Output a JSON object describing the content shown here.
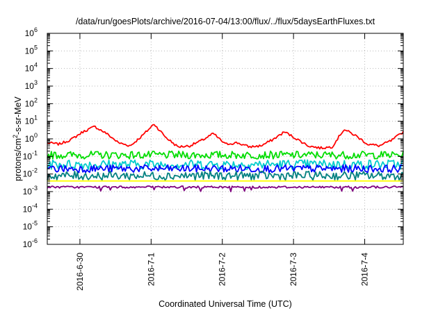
{
  "chart_data": {
    "type": "line",
    "title": "/data/run/goesPlots/archive/2016-07-04/13:00/flux/../flux/5daysEarthFluxes.txt",
    "xlabel": "Coordinated Universal Time (UTC)",
    "ylabel_parts": [
      "protons/cm",
      "2",
      "-s-sr-MeV"
    ],
    "y_scale": "log",
    "ylim": [
      1e-06,
      1000000.0
    ],
    "y_ticks": [
      {
        "base": "10",
        "exp": "-6"
      },
      {
        "base": "10",
        "exp": "-5"
      },
      {
        "base": "10",
        "exp": "-4"
      },
      {
        "base": "10",
        "exp": "-3"
      },
      {
        "base": "10",
        "exp": "-2"
      },
      {
        "base": "10",
        "exp": "-1"
      },
      {
        "base": "10",
        "exp": "0"
      },
      {
        "base": "10",
        "exp": "1"
      },
      {
        "base": "10",
        "exp": "2"
      },
      {
        "base": "10",
        "exp": "3"
      },
      {
        "base": "10",
        "exp": "4"
      },
      {
        "base": "10",
        "exp": "5"
      },
      {
        "base": "10",
        "exp": "6"
      }
    ],
    "xlim": [
      "2016-06-29 13:00",
      "2016-07-04 13:00"
    ],
    "x_ticks": [
      "2016-6-30",
      "2016-7-1",
      "2016-7-2",
      "2016-7-3",
      "2016-7-4"
    ],
    "grid": true,
    "series": [
      {
        "color": "#ff0000",
        "x": [
          "2016-06-29 13:00",
          "2016-06-29 17:00",
          "2016-06-29 21:00",
          "2016-06-30 01:00",
          "2016-06-30 05:00",
          "2016-06-30 09:00",
          "2016-06-30 13:00",
          "2016-06-30 17:00",
          "2016-06-30 21:00",
          "2016-07-01 01:00",
          "2016-07-01 05:00",
          "2016-07-01 09:00",
          "2016-07-01 13:00",
          "2016-07-01 17:00",
          "2016-07-01 21:00",
          "2016-07-02 01:00",
          "2016-07-02 05:00",
          "2016-07-02 09:00",
          "2016-07-02 13:00",
          "2016-07-02 17:00",
          "2016-07-02 21:00",
          "2016-07-03 01:00",
          "2016-07-03 05:00",
          "2016-07-03 09:00",
          "2016-07-03 13:00",
          "2016-07-03 17:00",
          "2016-07-03 21:00",
          "2016-07-04 01:00",
          "2016-07-04 05:00",
          "2016-07-04 09:00",
          "2016-07-04 13:00"
        ],
        "y": [
          0.6,
          0.5,
          0.9,
          2.5,
          5.0,
          2.0,
          0.6,
          0.4,
          1.5,
          7.0,
          1.2,
          0.35,
          0.4,
          0.8,
          2.0,
          0.5,
          0.6,
          0.35,
          0.4,
          0.9,
          2.5,
          1.0,
          0.4,
          0.3,
          0.35,
          3.5,
          1.5,
          0.5,
          0.4,
          0.8,
          2.5
        ]
      },
      {
        "color": "#00dd00",
        "x": [
          "2016-06-29 13:00",
          "2016-07-04 13:00"
        ],
        "y": [
          0.12,
          0.12
        ]
      },
      {
        "color": "#00cccc",
        "x": [
          "2016-06-29 13:00",
          "2016-07-04 13:00"
        ],
        "y": [
          0.035,
          0.035
        ]
      },
      {
        "color": "#0000ff",
        "x": [
          "2016-06-29 13:00",
          "2016-07-04 13:00"
        ],
        "y": [
          0.02,
          0.02
        ]
      },
      {
        "color": "#008080",
        "x": [
          "2016-06-29 13:00",
          "2016-07-04 13:00"
        ],
        "y": [
          0.008,
          0.008
        ]
      },
      {
        "color": "#ffff00",
        "x": [
          "2016-06-29 13:00",
          "2016-07-04 13:00"
        ],
        "y": [
          0.004,
          0.004
        ]
      },
      {
        "color": "#800080",
        "x": [
          "2016-06-29 13:00",
          "2016-07-04 13:00"
        ],
        "y": [
          0.0018,
          0.0018
        ]
      }
    ]
  }
}
